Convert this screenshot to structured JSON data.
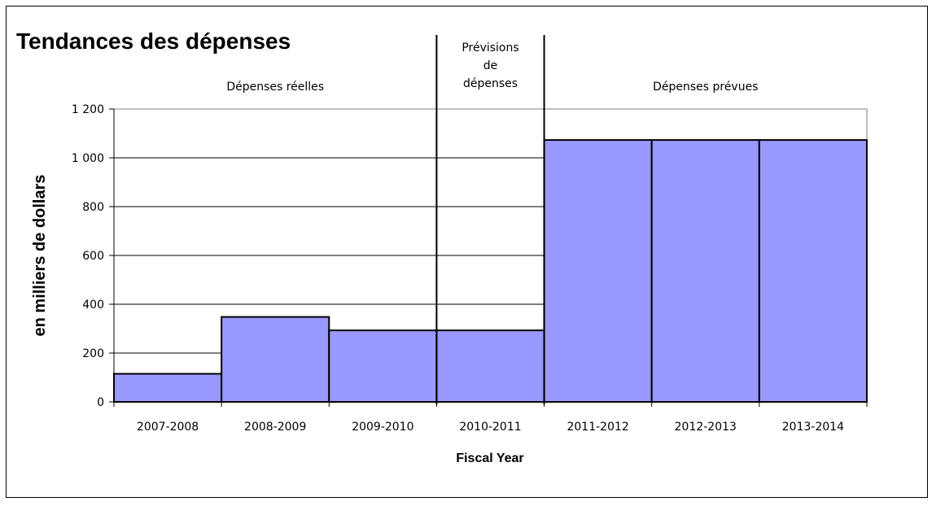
{
  "chart_data": {
    "type": "bar",
    "title": "Tendances des dépenses",
    "xlabel": "Fiscal Year",
    "ylabel": "en milliers de dollars",
    "categories": [
      "2007-2008",
      "2008-2009",
      "2009-2010",
      "2010-2011",
      "2011-2012",
      "2012-2013",
      "2013-2014"
    ],
    "values": [
      115,
      348,
      293,
      293,
      1073,
      1073,
      1073
    ],
    "ylim": [
      0,
      1200
    ],
    "yticks": [
      0,
      200,
      400,
      600,
      800,
      1000,
      1200
    ],
    "ytick_labels": [
      "0",
      "200",
      "400",
      "600",
      "800",
      "1 000",
      "1 200"
    ],
    "grid": true,
    "bar_color": "#9999ff",
    "sections": [
      {
        "label_lines": [
          "Dépenses réelles"
        ],
        "from_index": 0,
        "to_index": 2
      },
      {
        "label_lines": [
          "Prévisions",
          "de",
          "dépenses"
        ],
        "from_index": 3,
        "to_index": 3
      },
      {
        "label_lines": [
          "Dépenses prévues"
        ],
        "from_index": 4,
        "to_index": 6
      }
    ]
  }
}
